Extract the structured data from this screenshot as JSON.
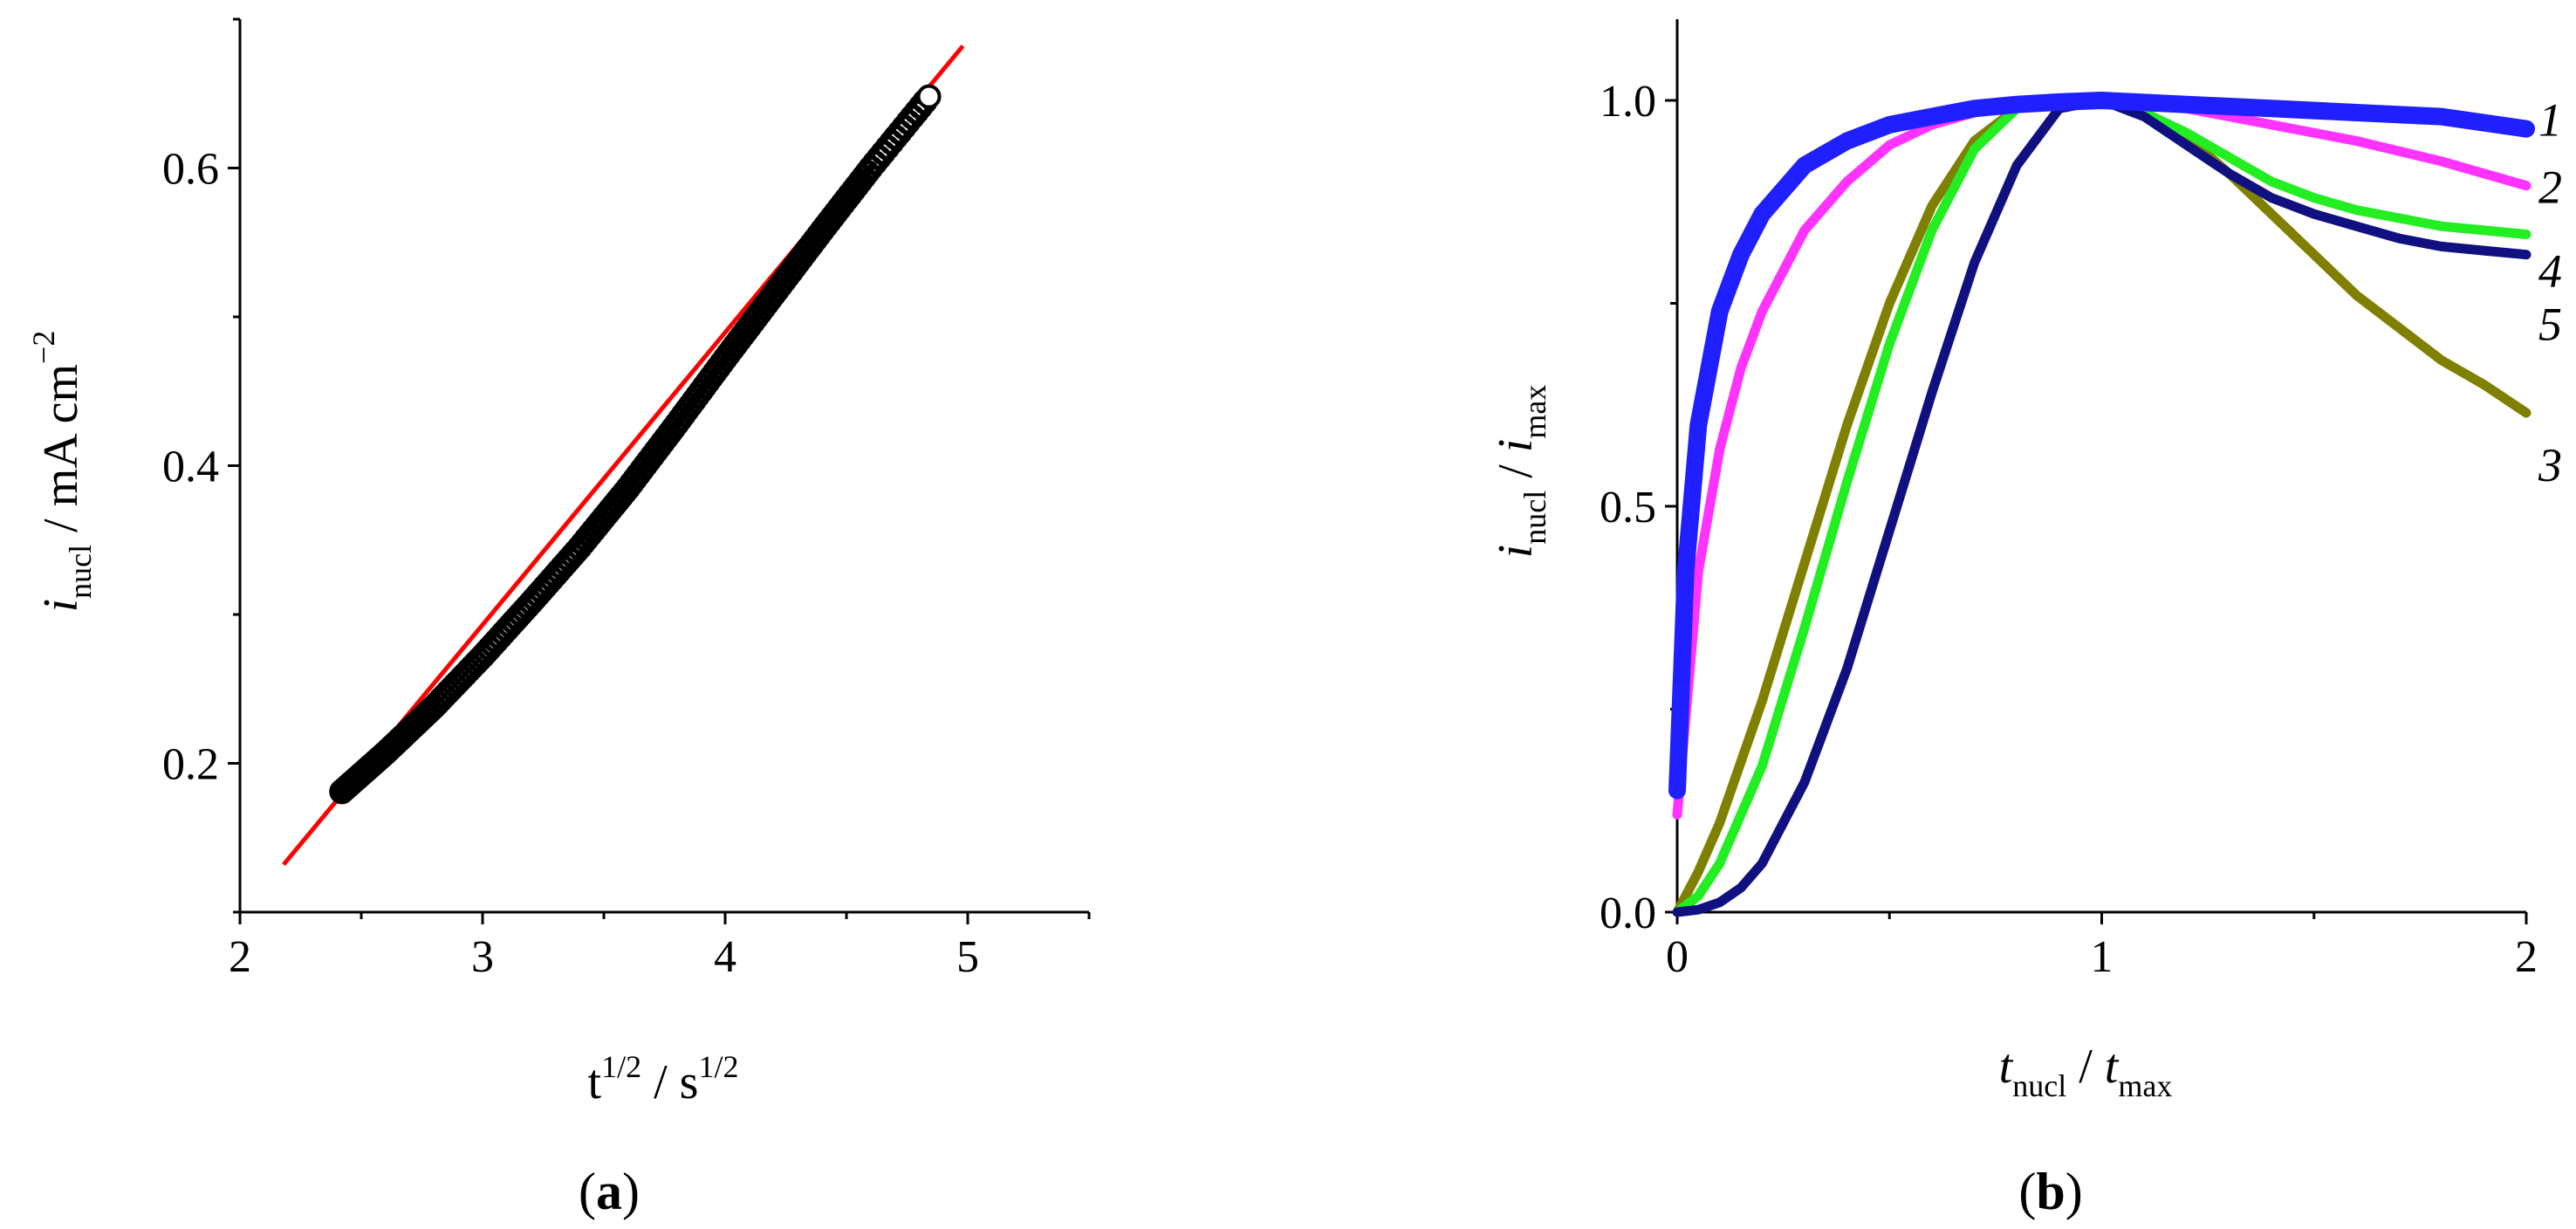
{
  "chart_data": [
    {
      "panel_label": "(a)",
      "type": "scatter",
      "xlabel": {
        "main": "t",
        "main_sup": "1/2",
        "sep": " / s",
        "unit_sup": "1/2"
      },
      "ylabel": {
        "main": "i",
        "sub": "nucl",
        "rest": " / mA cm",
        "sup": "−2"
      },
      "xlim": [
        2,
        5.5
      ],
      "ylim": [
        0.1,
        0.7
      ],
      "xticks": [
        2,
        3,
        4,
        5
      ],
      "yticks": [
        0.2,
        0.4,
        0.6
      ],
      "grid": false,
      "series": [
        {
          "role": "experimental",
          "marker": "open-circle",
          "color": "#000000",
          "x_start": 2.42,
          "x_end": 4.84,
          "points": [
            [
              2.42,
              0.181
            ],
            [
              2.6,
              0.207
            ],
            [
              2.8,
              0.238
            ],
            [
              3.0,
              0.272
            ],
            [
              3.2,
              0.308
            ],
            [
              3.4,
              0.345
            ],
            [
              3.6,
              0.385
            ],
            [
              3.8,
              0.428
            ],
            [
              4.0,
              0.472
            ],
            [
              4.2,
              0.515
            ],
            [
              4.4,
              0.558
            ],
            [
              4.6,
              0.6
            ],
            [
              4.84,
              0.648
            ]
          ]
        },
        {
          "role": "linear-fit",
          "color": "#ff0000",
          "x": [
            2.18,
            4.98
          ],
          "y": [
            0.132,
            0.682
          ]
        }
      ]
    },
    {
      "panel_label": "(b)",
      "type": "line",
      "xlabel": {
        "a": "t",
        "a_sub": "nucl",
        "sep": " / ",
        "b": "t",
        "b_sub": "max"
      },
      "ylabel": {
        "a": "i",
        "a_sub": "nucl",
        "sep": " / ",
        "b": "i",
        "b_sub": "max"
      },
      "xlim": [
        0,
        2
      ],
      "ylim": [
        0,
        1.1
      ],
      "xticks": [
        0,
        1,
        2
      ],
      "yticks": [
        0.0,
        0.5,
        1.0
      ],
      "grid": false,
      "series": [
        {
          "label": "1",
          "color": "#1f1fff",
          "stroke": "thick",
          "x": [
            0,
            0.02,
            0.05,
            0.1,
            0.15,
            0.2,
            0.3,
            0.4,
            0.5,
            0.6,
            0.7,
            0.8,
            0.9,
            1.0,
            1.2,
            1.4,
            1.6,
            1.8,
            2.0
          ],
          "y": [
            0.15,
            0.42,
            0.6,
            0.74,
            0.81,
            0.86,
            0.92,
            0.95,
            0.97,
            0.98,
            0.99,
            0.995,
            0.998,
            1.0,
            0.995,
            0.99,
            0.985,
            0.98,
            0.965
          ]
        },
        {
          "label": "2",
          "color": "#ff33ff",
          "stroke": "normal",
          "x": [
            0,
            0.05,
            0.1,
            0.15,
            0.2,
            0.3,
            0.4,
            0.5,
            0.6,
            0.7,
            0.8,
            0.9,
            1.0,
            1.2,
            1.4,
            1.6,
            1.8,
            2.0
          ],
          "y": [
            0.12,
            0.42,
            0.57,
            0.67,
            0.74,
            0.84,
            0.9,
            0.945,
            0.97,
            0.985,
            0.995,
            1.0,
            1.0,
            0.99,
            0.97,
            0.95,
            0.925,
            0.895
          ]
        },
        {
          "label": "3",
          "color": "#808000",
          "stroke": "normal",
          "x": [
            0,
            0.05,
            0.1,
            0.2,
            0.3,
            0.4,
            0.5,
            0.6,
            0.7,
            0.8,
            0.9,
            1.0,
            1.1,
            1.2,
            1.3,
            1.4,
            1.5,
            1.6,
            1.7,
            1.8,
            1.9,
            2.0
          ],
          "y": [
            0,
            0.05,
            0.11,
            0.26,
            0.43,
            0.6,
            0.75,
            0.87,
            0.95,
            0.99,
            1.0,
            1.0,
            0.985,
            0.955,
            0.91,
            0.86,
            0.81,
            0.76,
            0.72,
            0.68,
            0.65,
            0.615
          ]
        },
        {
          "label": "4",
          "color": "#22ee22",
          "stroke": "normal",
          "x": [
            0,
            0.05,
            0.1,
            0.2,
            0.3,
            0.4,
            0.5,
            0.6,
            0.7,
            0.8,
            0.9,
            1.0,
            1.1,
            1.2,
            1.3,
            1.4,
            1.5,
            1.6,
            1.7,
            1.8,
            1.9,
            2.0
          ],
          "y": [
            0,
            0.02,
            0.06,
            0.18,
            0.35,
            0.53,
            0.7,
            0.84,
            0.94,
            0.99,
            1.0,
            1.0,
            0.985,
            0.96,
            0.93,
            0.9,
            0.88,
            0.865,
            0.855,
            0.845,
            0.84,
            0.835
          ]
        },
        {
          "label": "5",
          "color": "#101080",
          "stroke": "normal",
          "x": [
            0,
            0.05,
            0.1,
            0.15,
            0.2,
            0.3,
            0.4,
            0.5,
            0.6,
            0.7,
            0.8,
            0.9,
            1.0,
            1.1,
            1.2,
            1.3,
            1.4,
            1.5,
            1.6,
            1.7,
            1.8,
            1.9,
            2.0
          ],
          "y": [
            0,
            0.003,
            0.012,
            0.03,
            0.06,
            0.16,
            0.3,
            0.47,
            0.64,
            0.8,
            0.92,
            0.99,
            1.0,
            0.98,
            0.945,
            0.91,
            0.88,
            0.86,
            0.845,
            0.83,
            0.82,
            0.815,
            0.81
          ]
        }
      ]
    }
  ]
}
